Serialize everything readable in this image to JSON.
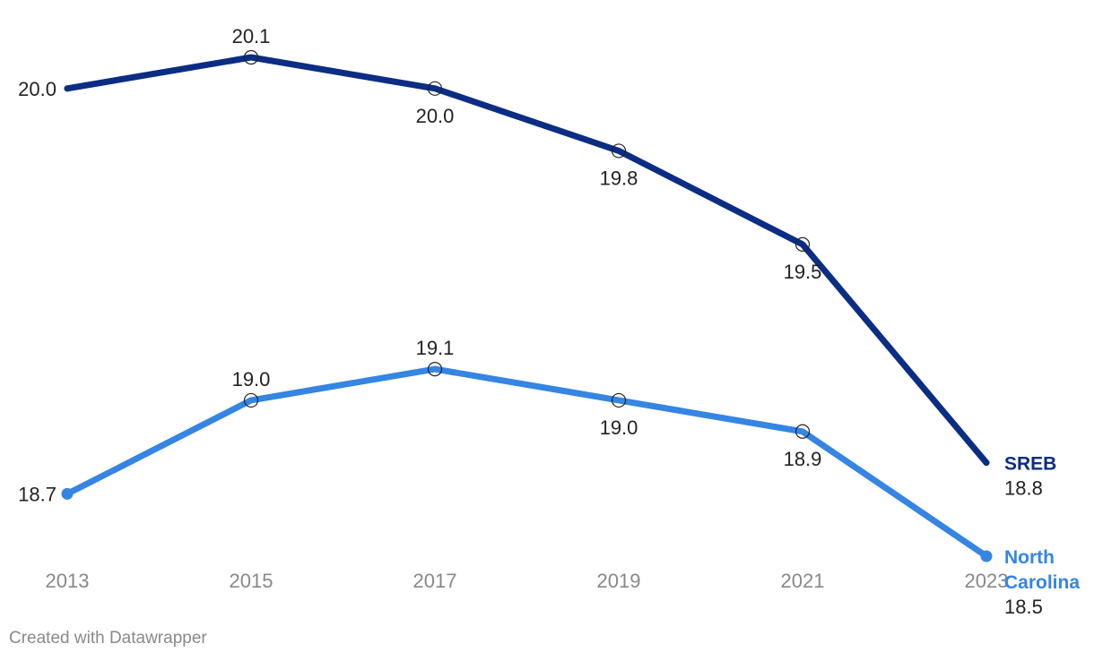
{
  "chart_data": {
    "type": "line",
    "x": [
      "2013",
      "2015",
      "2017",
      "2019",
      "2021",
      "2023"
    ],
    "series": [
      {
        "name": "SREB",
        "color": "#0b2d84",
        "values": [
          20.0,
          20.1,
          20.0,
          19.8,
          19.5,
          18.8
        ],
        "labels": [
          "20.0",
          "20.1",
          "20.0",
          "19.8",
          "19.5",
          "18.8"
        ]
      },
      {
        "name": "North Carolina",
        "name_lines": [
          "North",
          "Carolina"
        ],
        "color": "#3585e3",
        "values": [
          18.7,
          19.0,
          19.1,
          19.0,
          18.9,
          18.5
        ],
        "labels": [
          "18.7",
          "19.0",
          "19.1",
          "19.0",
          "18.9",
          "18.5"
        ]
      }
    ],
    "ylim": [
      18.5,
      20.1
    ],
    "title": "",
    "xlabel": "",
    "ylabel": ""
  },
  "footer": {
    "credit": "Created with Datawrapper"
  }
}
